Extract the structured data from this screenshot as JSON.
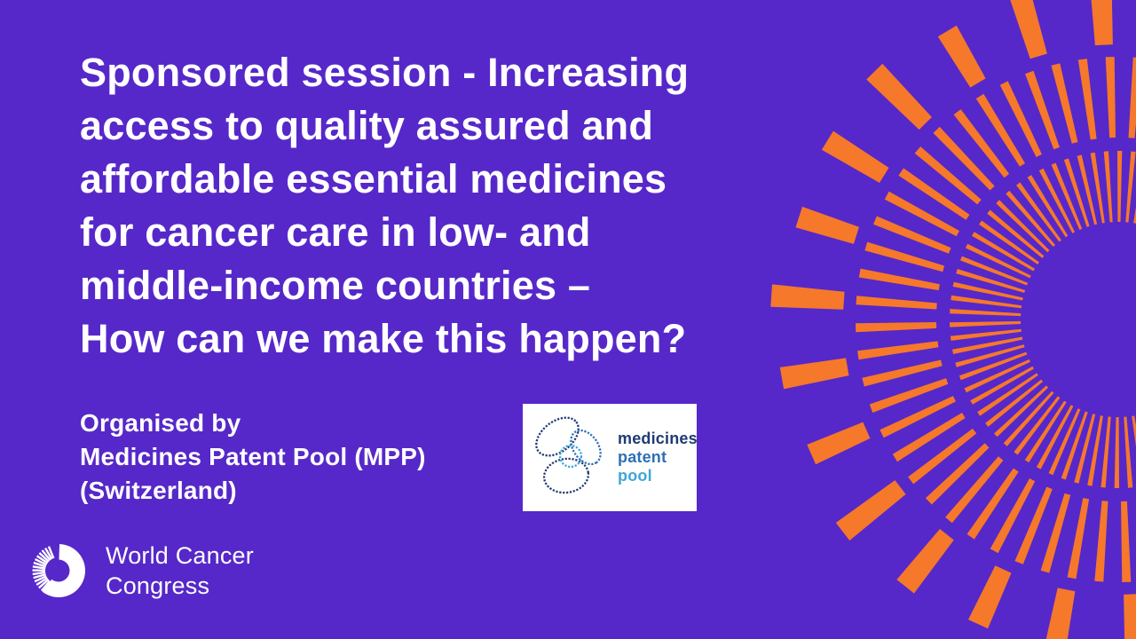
{
  "theme": {
    "background_purple": "#5628C9",
    "sunburst_orange": "#F5782B",
    "text_white": "#FFFFFF",
    "mpp_box_white": "#FFFFFF",
    "mpp_navy": "#1F3B73",
    "mpp_medium_blue": "#2E6FB5",
    "mpp_light_blue": "#3FA6DB"
  },
  "headline": {
    "lines": [
      "Sponsored session - Increasing",
      "access to quality assured and",
      "affordable essential medicines",
      "for cancer care in low- and",
      "middle-income countries –",
      "How can we make this happen?"
    ]
  },
  "organiser": {
    "lines": [
      "Organised by",
      "Medicines Patent Pool (MPP)",
      "(Switzerland)"
    ]
  },
  "mpp_logo": {
    "words": [
      {
        "text": "medicines",
        "color": "#1F3B73"
      },
      {
        "text": "patent",
        "color": "#2E6FB5"
      },
      {
        "text": "pool",
        "color": "#3FA6DB"
      }
    ]
  },
  "footer_logo": {
    "lines": [
      "World Cancer",
      "Congress"
    ]
  }
}
